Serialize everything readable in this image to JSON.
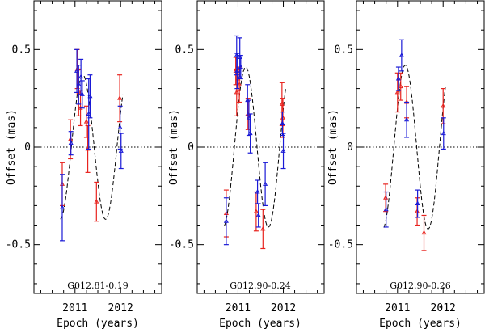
{
  "colors": {
    "red": "#e8231e",
    "blue": "#1a1ad6",
    "axis": "#000000"
  },
  "chart_data": [
    {
      "type": "scatter",
      "title": "G012.81-0.19",
      "xlabel": "Epoch (years)",
      "ylabel": "Offset (mas)",
      "xlim": [
        2010.1,
        2012.9
      ],
      "ylim": [
        -0.75,
        0.75
      ],
      "xticks": [
        {
          "v": 2011,
          "label": "2011"
        },
        {
          "v": 2012,
          "label": "2012"
        }
      ],
      "yticks": [
        {
          "v": 0.5,
          "label": "0.5"
        },
        {
          "v": 0,
          "label": "0"
        },
        {
          "v": -0.5,
          "label": "-0.5"
        }
      ],
      "model": {
        "period": 1.0,
        "amplitude": 0.37,
        "phase_peak": 2011.17,
        "fit_range": [
          2010.68,
          2012.05
        ]
      },
      "series": [
        {
          "name": "Red",
          "color": "#e8231e",
          "points": [
            {
              "x": 2010.72,
              "y": -0.19,
              "e": 0.11
            },
            {
              "x": 2010.9,
              "y": 0.04,
              "e": 0.1
            },
            {
              "x": 2011.05,
              "y": 0.4,
              "e": 0.1
            },
            {
              "x": 2011.08,
              "y": 0.28,
              "e": 0.12
            },
            {
              "x": 2011.12,
              "y": 0.2,
              "e": 0.09
            },
            {
              "x": 2011.25,
              "y": 0.13,
              "e": 0.08
            },
            {
              "x": 2011.28,
              "y": -0.01,
              "e": 0.12
            },
            {
              "x": 2011.47,
              "y": -0.28,
              "e": 0.1
            },
            {
              "x": 2011.98,
              "y": 0.25,
              "e": 0.12
            }
          ]
        },
        {
          "name": "Blue",
          "color": "#1a1ad6",
          "points": [
            {
              "x": 2010.72,
              "y": -0.31,
              "e": 0.17
            },
            {
              "x": 2010.91,
              "y": 0.02,
              "e": 0.06
            },
            {
              "x": 2011.04,
              "y": 0.39,
              "e": 0.11
            },
            {
              "x": 2011.08,
              "y": 0.32,
              "e": 0.1
            },
            {
              "x": 2011.13,
              "y": 0.36,
              "e": 0.09
            },
            {
              "x": 2011.16,
              "y": 0.27,
              "e": 0.07
            },
            {
              "x": 2011.3,
              "y": 0.17,
              "e": 0.18
            },
            {
              "x": 2011.33,
              "y": 0.26,
              "e": 0.11
            },
            {
              "x": 2011.99,
              "y": 0.1,
              "e": 0.11
            },
            {
              "x": 2012.01,
              "y": -0.02,
              "e": 0.09
            }
          ]
        }
      ]
    },
    {
      "type": "scatter",
      "title": "G012.90-0.24",
      "xlabel": "Epoch (years)",
      "ylabel": "Offset (mas)",
      "xlim": [
        2010.1,
        2012.9
      ],
      "ylim": [
        -0.75,
        0.75
      ],
      "xticks": [
        {
          "v": 2011,
          "label": "2011"
        },
        {
          "v": 2012,
          "label": "2012"
        }
      ],
      "yticks": [
        {
          "v": 0.5,
          "label": "0.5"
        },
        {
          "v": 0,
          "label": "0"
        },
        {
          "v": -0.5,
          "label": "-0.5"
        }
      ],
      "model": {
        "period": 1.0,
        "amplitude": 0.41,
        "phase_peak": 2011.17,
        "fit_range": [
          2010.7,
          2012.05
        ]
      },
      "series": [
        {
          "name": "Red",
          "color": "#e8231e",
          "points": [
            {
              "x": 2010.74,
              "y": -0.34,
              "e": 0.12
            },
            {
              "x": 2010.95,
              "y": 0.39,
              "e": 0.07
            },
            {
              "x": 2010.97,
              "y": 0.28,
              "e": 0.12
            },
            {
              "x": 2011.0,
              "y": 0.35,
              "e": 0.06
            },
            {
              "x": 2011.03,
              "y": 0.32,
              "e": 0.09
            },
            {
              "x": 2011.22,
              "y": 0.17,
              "e": 0.08
            },
            {
              "x": 2011.4,
              "y": -0.33,
              "e": 0.1
            },
            {
              "x": 2011.55,
              "y": -0.42,
              "e": 0.1
            },
            {
              "x": 2011.97,
              "y": 0.22,
              "e": 0.11
            },
            {
              "x": 2011.99,
              "y": 0.15,
              "e": 0.1
            }
          ]
        },
        {
          "name": "Blue",
          "color": "#1a1ad6",
          "points": [
            {
              "x": 2010.74,
              "y": -0.38,
              "e": 0.12
            },
            {
              "x": 2010.97,
              "y": 0.47,
              "e": 0.1
            },
            {
              "x": 2010.98,
              "y": 0.39,
              "e": 0.09
            },
            {
              "x": 2011.04,
              "y": 0.46,
              "e": 0.1
            },
            {
              "x": 2011.06,
              "y": 0.41,
              "e": 0.06
            },
            {
              "x": 2011.21,
              "y": 0.24,
              "e": 0.08
            },
            {
              "x": 2011.24,
              "y": 0.15,
              "e": 0.09
            },
            {
              "x": 2011.27,
              "y": 0.07,
              "e": 0.1
            },
            {
              "x": 2011.43,
              "y": -0.23,
              "e": 0.06
            },
            {
              "x": 2011.45,
              "y": -0.35,
              "e": 0.06
            },
            {
              "x": 2011.6,
              "y": -0.19,
              "e": 0.11
            },
            {
              "x": 2011.98,
              "y": 0.12,
              "e": 0.06
            },
            {
              "x": 2012.0,
              "y": -0.02,
              "e": 0.09
            }
          ]
        }
      ]
    },
    {
      "type": "scatter",
      "title": "G012.90-0.26",
      "xlabel": "Epoch (years)",
      "ylabel": "Offset (mas)",
      "xlim": [
        2010.1,
        2012.9
      ],
      "ylim": [
        -0.75,
        0.75
      ],
      "xticks": [
        {
          "v": 2011,
          "label": "2011"
        },
        {
          "v": 2012,
          "label": "2012"
        }
      ],
      "yticks": [
        {
          "v": 0.5,
          "label": "0.5"
        },
        {
          "v": 0,
          "label": "0"
        },
        {
          "v": -0.5,
          "label": "-0.5"
        }
      ],
      "model": {
        "period": 1.0,
        "amplitude": 0.42,
        "phase_peak": 2011.17,
        "fit_range": [
          2010.7,
          2012.05
        ]
      },
      "series": [
        {
          "name": "Red",
          "color": "#e8231e",
          "points": [
            {
              "x": 2010.74,
              "y": -0.26,
              "e": 0.07
            },
            {
              "x": 2011.0,
              "y": 0.28,
              "e": 0.1
            },
            {
              "x": 2011.07,
              "y": 0.31,
              "e": 0.07
            },
            {
              "x": 2011.2,
              "y": 0.23,
              "e": 0.08
            },
            {
              "x": 2011.43,
              "y": -0.33,
              "e": 0.07
            },
            {
              "x": 2011.58,
              "y": -0.44,
              "e": 0.09
            },
            {
              "x": 2012.0,
              "y": 0.21,
              "e": 0.09
            }
          ]
        },
        {
          "name": "Blue",
          "color": "#1a1ad6",
          "points": [
            {
              "x": 2010.75,
              "y": -0.32,
              "e": 0.09
            },
            {
              "x": 2011.02,
              "y": 0.35,
              "e": 0.06
            },
            {
              "x": 2011.09,
              "y": 0.47,
              "e": 0.08
            },
            {
              "x": 2011.2,
              "y": 0.14,
              "e": 0.09
            },
            {
              "x": 2011.44,
              "y": -0.29,
              "e": 0.07
            },
            {
              "x": 2012.01,
              "y": 0.07,
              "e": 0.08
            }
          ]
        }
      ]
    }
  ]
}
